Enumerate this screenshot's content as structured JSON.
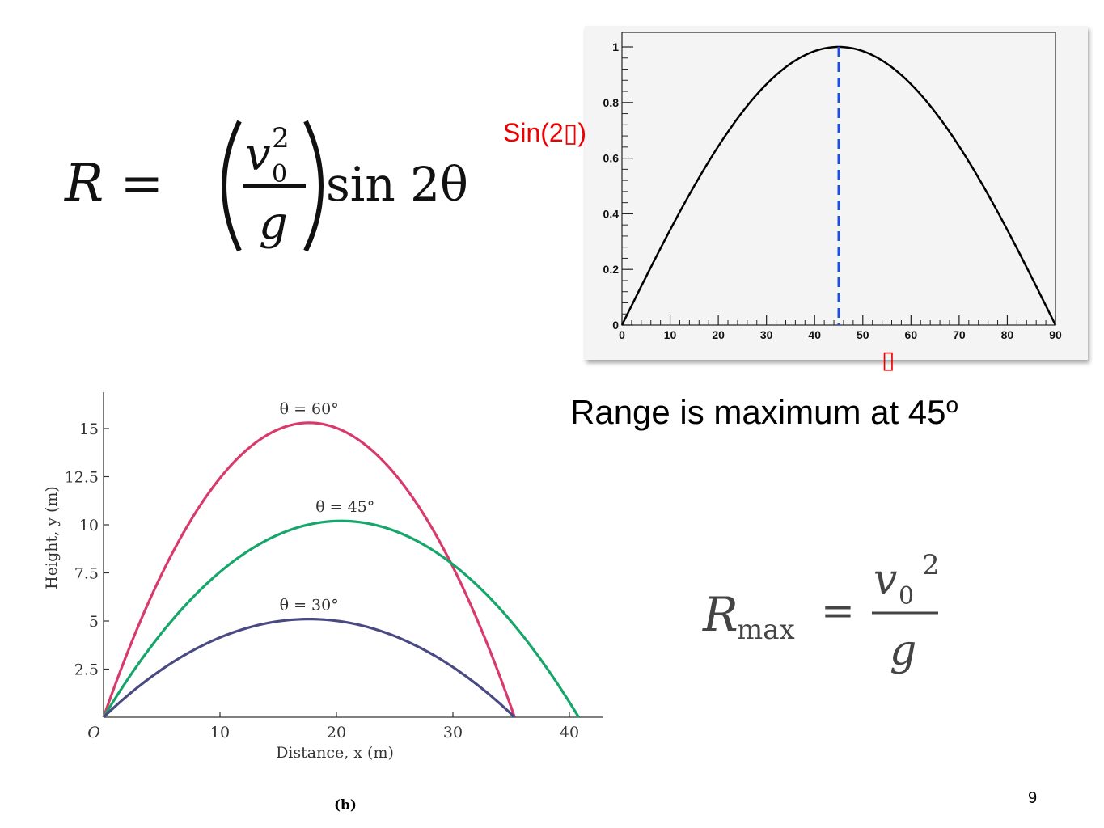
{
  "formula_main": {
    "lhs": "R =",
    "numerator": "v",
    "numerator_sup": "2",
    "numerator_sub": "0",
    "denominator": "g",
    "rhs": "sin 2θ"
  },
  "formula_max": {
    "lhs": "R",
    "lhs_sub": "max",
    "equals": "=",
    "numerator": "v",
    "numerator_sub": "0",
    "numerator_sup": "2",
    "denominator": "g"
  },
  "sin_ylabel": "Sin(2▯)",
  "theta_label": "▯",
  "range_text": "Range is maximum at 45",
  "range_text_sup": "o",
  "page_number": "9",
  "panel_label": "(b)",
  "colors": {
    "accent_red": "#ee0000",
    "dashed_blue": "#1f4fe0",
    "curve_60": "#d83a6c",
    "curve_45": "#16a56b",
    "curve_30": "#4a4a82"
  },
  "chart_data": [
    {
      "type": "line",
      "title": "",
      "xlabel": "",
      "ylabel": "Sin(2▯)",
      "xlim": [
        0,
        90
      ],
      "ylim": [
        0,
        1
      ],
      "x_ticks": [
        "0",
        "10",
        "20",
        "30",
        "40",
        "50",
        "60",
        "70",
        "80",
        "90"
      ],
      "y_ticks": [
        "0",
        "0.2",
        "0.4",
        "0.6",
        "0.8",
        "1"
      ],
      "series": [
        {
          "values_x": [
            0,
            10,
            20,
            30,
            40,
            45,
            50,
            60,
            70,
            80,
            90
          ],
          "values_y": [
            0,
            0.342,
            0.643,
            0.866,
            0.985,
            1,
            0.985,
            0.866,
            0.643,
            0.342,
            0
          ]
        }
      ],
      "marker_line_x": 45
    },
    {
      "type": "line",
      "title": "",
      "xlabel": "Distance, x (m)",
      "ylabel": "Height, y (m)",
      "xlim": [
        0,
        43
      ],
      "ylim": [
        0,
        17
      ],
      "x_ticks": [
        "O",
        "10",
        "20",
        "30",
        "40"
      ],
      "y_ticks": [
        "2.5",
        "5",
        "7.5",
        "10",
        "12.5",
        "15"
      ],
      "series": [
        {
          "name": "θ = 60°",
          "range": 35.3,
          "peak": 15.3
        },
        {
          "name": "θ = 45°",
          "range": 40.8,
          "peak": 10.2
        },
        {
          "name": "θ = 30°",
          "range": 35.3,
          "peak": 5.1
        }
      ]
    }
  ]
}
